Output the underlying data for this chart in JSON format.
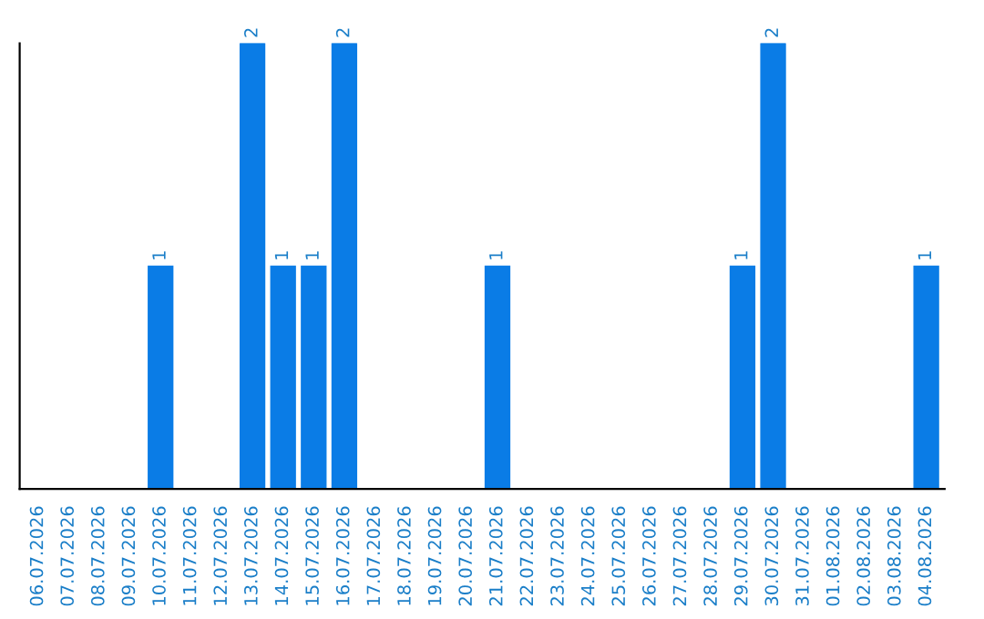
{
  "chart_data": {
    "type": "bar",
    "categories": [
      "06.07.2026",
      "07.07.2026",
      "08.07.2026",
      "09.07.2026",
      "10.07.2026",
      "11.07.2026",
      "12.07.2026",
      "13.07.2026",
      "14.07.2026",
      "15.07.2026",
      "16.07.2026",
      "17.07.2026",
      "18.07.2026",
      "19.07.2026",
      "20.07.2026",
      "21.07.2026",
      "22.07.2026",
      "23.07.2026",
      "24.07.2026",
      "25.07.2026",
      "26.07.2026",
      "27.07.2026",
      "28.07.2026",
      "29.07.2026",
      "30.07.2026",
      "31.07.2026",
      "01.08.2026",
      "02.08.2026",
      "03.08.2026",
      "04.08.2026"
    ],
    "values": [
      0,
      0,
      0,
      0,
      1,
      0,
      0,
      2,
      1,
      1,
      2,
      0,
      0,
      0,
      0,
      1,
      0,
      0,
      0,
      0,
      0,
      0,
      0,
      1,
      2,
      0,
      0,
      0,
      0,
      1
    ],
    "value_labels": [
      null,
      null,
      null,
      null,
      "1",
      null,
      null,
      "2",
      "1",
      "1",
      "2",
      null,
      null,
      null,
      null,
      "1",
      null,
      null,
      null,
      null,
      null,
      null,
      null,
      "1",
      "2",
      null,
      null,
      null,
      null,
      "1"
    ],
    "color": "#0a7ce6",
    "ylim": [
      0,
      2
    ],
    "tick_labels": "x",
    "grid": false
  }
}
